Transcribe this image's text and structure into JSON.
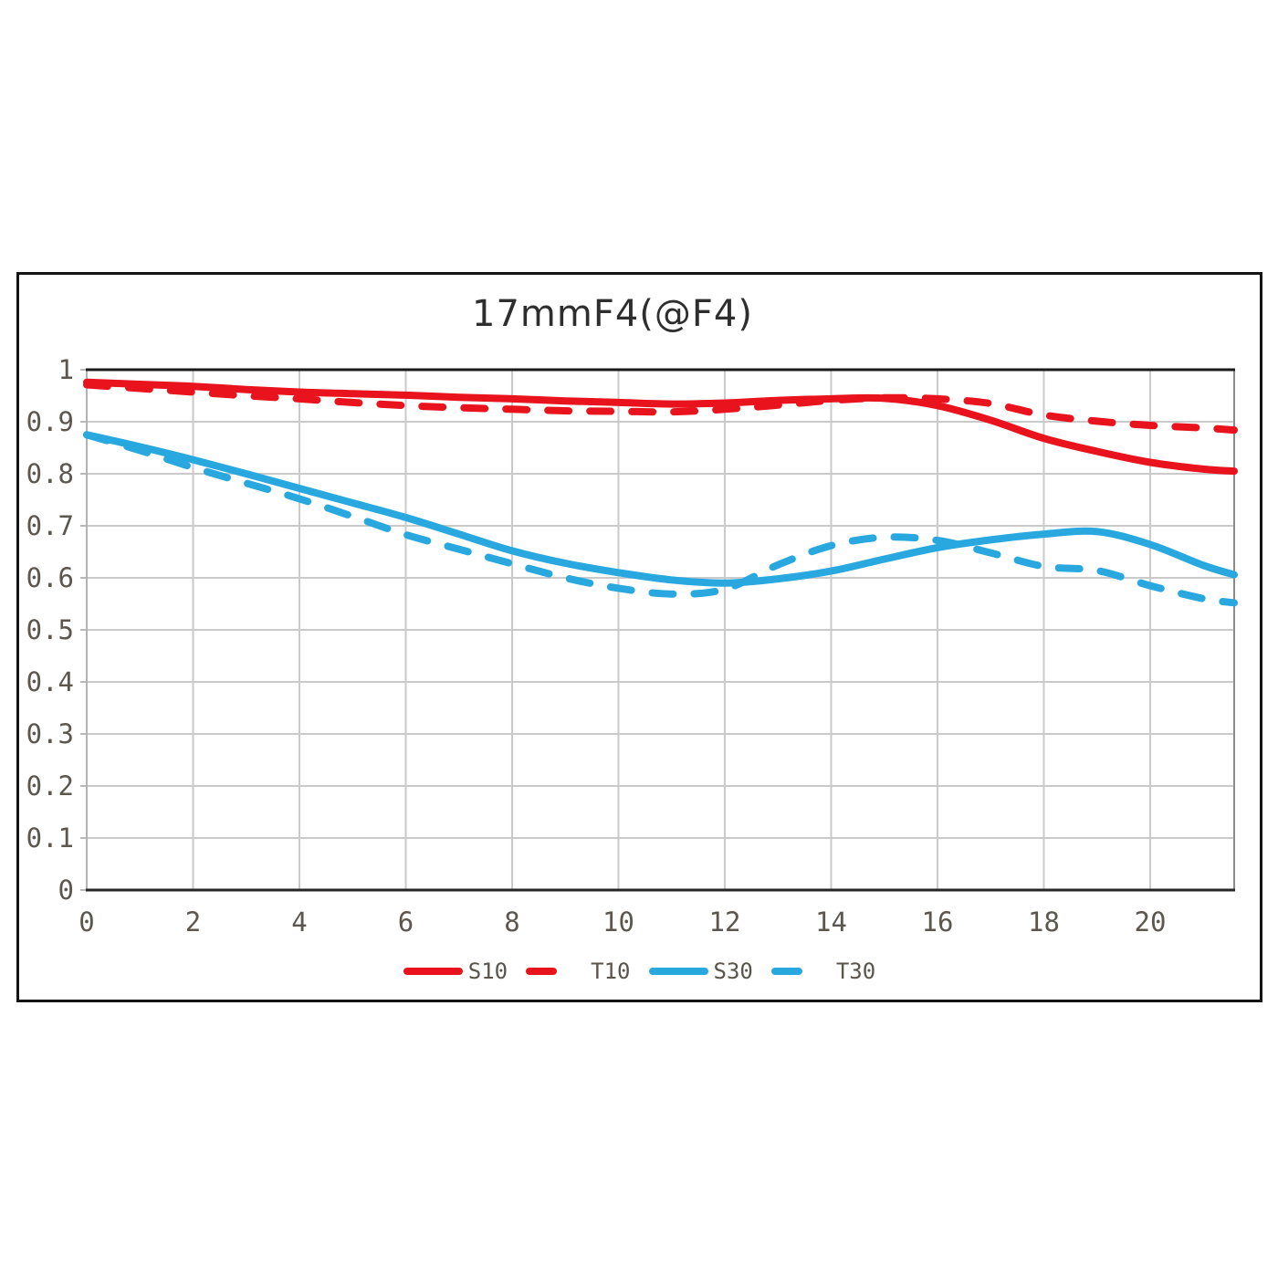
{
  "chart_data": {
    "type": "line",
    "title": "17mmF4(@F4)",
    "grid": true,
    "legend_position": "bottom",
    "x_axis": {
      "min": 0,
      "max": 21.58,
      "tick_values": [
        0,
        2,
        4,
        6,
        8,
        10,
        12,
        14,
        16,
        18,
        20
      ],
      "tick_labels": [
        "0",
        "2",
        "4",
        "6",
        "8",
        "10",
        "12",
        "14",
        "16",
        "18",
        "20"
      ]
    },
    "y_axis": {
      "min": 0,
      "max": 1,
      "tick_values": [
        0,
        0.1,
        0.2,
        0.3,
        0.4,
        0.5,
        0.6,
        0.7,
        0.8,
        0.9,
        1
      ],
      "tick_labels": [
        "0",
        "0.1",
        "0.2",
        "0.3",
        "0.4",
        "0.5",
        "0.6",
        "0.7",
        "0.8",
        "0.9",
        "1"
      ]
    },
    "series": [
      {
        "name": "T10",
        "color": "#e8131c",
        "style": "dashed",
        "points": [
          [
            0,
            0.971
          ],
          [
            1,
            0.964
          ],
          [
            2,
            0.957
          ],
          [
            3,
            0.95
          ],
          [
            4,
            0.944
          ],
          [
            5,
            0.937
          ],
          [
            6,
            0.931
          ],
          [
            7,
            0.927
          ],
          [
            8,
            0.924
          ],
          [
            9,
            0.921
          ],
          [
            10,
            0.92
          ],
          [
            11,
            0.919
          ],
          [
            12,
            0.924
          ],
          [
            13,
            0.932
          ],
          [
            14,
            0.941
          ],
          [
            15,
            0.946
          ],
          [
            16,
            0.944
          ],
          [
            17,
            0.935
          ],
          [
            18,
            0.913
          ],
          [
            19,
            0.901
          ],
          [
            20,
            0.893
          ],
          [
            21,
            0.888
          ],
          [
            21.58,
            0.884
          ]
        ]
      },
      {
        "name": "T30",
        "color": "#29a8e0",
        "style": "dashed",
        "points": [
          [
            0,
            0.875
          ],
          [
            1,
            0.845
          ],
          [
            2,
            0.812
          ],
          [
            3,
            0.782
          ],
          [
            4,
            0.752
          ],
          [
            5,
            0.718
          ],
          [
            6,
            0.683
          ],
          [
            7,
            0.655
          ],
          [
            8,
            0.627
          ],
          [
            9,
            0.6
          ],
          [
            10,
            0.58
          ],
          [
            11,
            0.569
          ],
          [
            12,
            0.578
          ],
          [
            13,
            0.625
          ],
          [
            14,
            0.662
          ],
          [
            15,
            0.678
          ],
          [
            16,
            0.672
          ],
          [
            17,
            0.648
          ],
          [
            18,
            0.622
          ],
          [
            19,
            0.614
          ],
          [
            20,
            0.585
          ],
          [
            21,
            0.56
          ],
          [
            21.58,
            0.552
          ]
        ]
      },
      {
        "name": "S10",
        "color": "#e8131c",
        "style": "solid",
        "points": [
          [
            0,
            0.976
          ],
          [
            1,
            0.972
          ],
          [
            2,
            0.968
          ],
          [
            3,
            0.962
          ],
          [
            4,
            0.957
          ],
          [
            5,
            0.954
          ],
          [
            6,
            0.951
          ],
          [
            7,
            0.947
          ],
          [
            8,
            0.944
          ],
          [
            9,
            0.94
          ],
          [
            10,
            0.937
          ],
          [
            11,
            0.934
          ],
          [
            12,
            0.936
          ],
          [
            13,
            0.941
          ],
          [
            14,
            0.944
          ],
          [
            15,
            0.945
          ],
          [
            16,
            0.931
          ],
          [
            17,
            0.903
          ],
          [
            18,
            0.868
          ],
          [
            19,
            0.843
          ],
          [
            20,
            0.822
          ],
          [
            21,
            0.809
          ],
          [
            21.58,
            0.805
          ]
        ]
      },
      {
        "name": "S30",
        "color": "#29a8e0",
        "style": "solid",
        "points": [
          [
            0,
            0.875
          ],
          [
            1,
            0.852
          ],
          [
            2,
            0.827
          ],
          [
            3,
            0.8
          ],
          [
            4,
            0.772
          ],
          [
            5,
            0.744
          ],
          [
            6,
            0.716
          ],
          [
            7,
            0.684
          ],
          [
            8,
            0.652
          ],
          [
            9,
            0.628
          ],
          [
            10,
            0.61
          ],
          [
            11,
            0.596
          ],
          [
            12,
            0.59
          ],
          [
            13,
            0.598
          ],
          [
            14,
            0.613
          ],
          [
            15,
            0.636
          ],
          [
            16,
            0.658
          ],
          [
            17,
            0.673
          ],
          [
            18,
            0.684
          ],
          [
            19,
            0.689
          ],
          [
            20,
            0.664
          ],
          [
            21,
            0.624
          ],
          [
            21.58,
            0.606
          ]
        ]
      }
    ],
    "legend_order": [
      "S10",
      "T10",
      "S30",
      "T30"
    ]
  },
  "style_colors": {
    "grid": "#cacaca",
    "axis_top": "#1a1a1a",
    "axis_bottom": "#262626",
    "axis_left": "#b3b3b3",
    "axis_right": "#8c8c8c",
    "tick_stub": "#b9b9b9",
    "tick_label": "#5c564f",
    "title": "#2e2e2e",
    "panel_border": "#141414"
  }
}
